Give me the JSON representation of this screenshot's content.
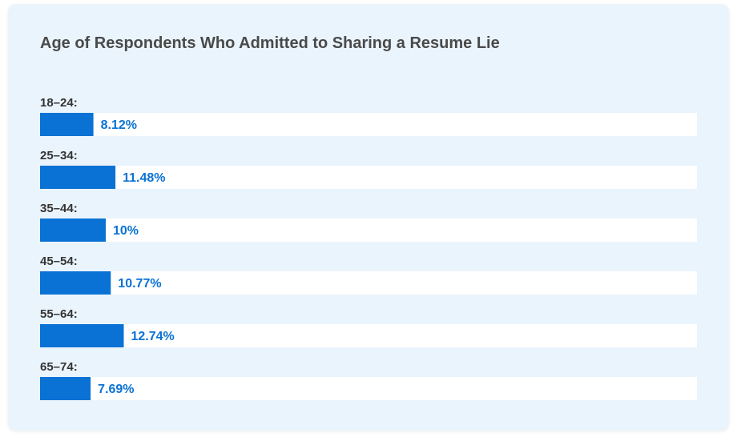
{
  "colors": {
    "background": "#eaf4fd",
    "bar": "#0a72d4",
    "track": "#ffffff",
    "label_text": "#333333",
    "value_text": "#0a72d4",
    "title_text": "#4a4a4a"
  },
  "chart_data": {
    "type": "bar",
    "orientation": "horizontal",
    "title": "Age of Respondents Who Admitted to Sharing a Resume Lie",
    "categories": [
      "18–24:",
      "25–34:",
      "35–44:",
      "45–54:",
      "55–64:",
      "65–74:"
    ],
    "values": [
      8.12,
      11.48,
      10,
      10.77,
      12.74,
      7.69
    ],
    "value_labels": [
      "8.12%",
      "11.48%",
      "10%",
      "10.77%",
      "12.74%",
      "7.69%"
    ],
    "unit": "%",
    "xlim": [
      0,
      100
    ],
    "grid": false,
    "legend": "none"
  }
}
